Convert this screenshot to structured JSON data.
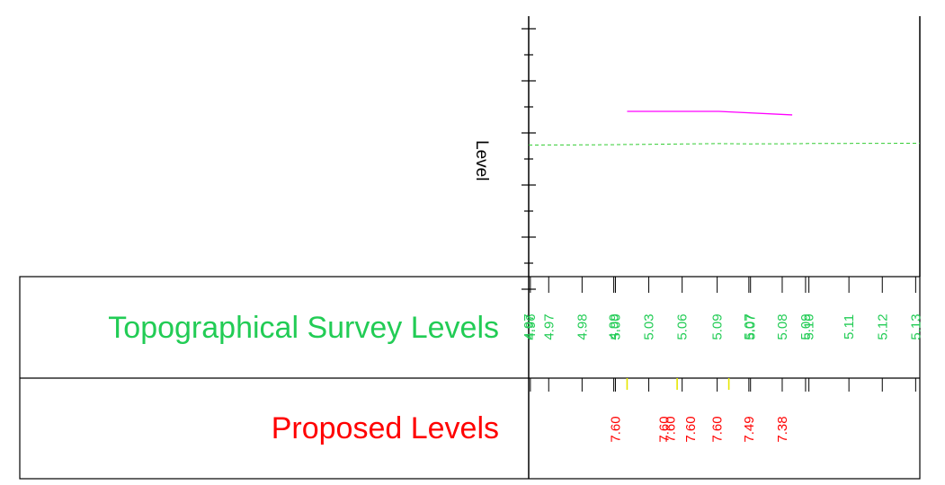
{
  "axis": {
    "y_label": "Level"
  },
  "colors": {
    "survey": "#22cc55",
    "proposed": "#ff0000",
    "proposed_line": "#ff00ff",
    "survey_line": "#33cc33",
    "marker": "#e6e600",
    "axis": "#000000"
  },
  "rows": {
    "survey_label": "Topographical Survey Levels",
    "proposed_label": "Proposed Levels"
  },
  "chart_data": {
    "type": "line",
    "survey_levels": [
      {
        "chainage": 0.0,
        "value": "4.97"
      },
      {
        "chainage": 0.05,
        "value": "4.96"
      },
      {
        "chainage": 0.6,
        "value": "4.97"
      },
      {
        "chainage": 1.6,
        "value": "4.98"
      },
      {
        "chainage": 2.55,
        "value": "4.99"
      },
      {
        "chainage": 2.6,
        "value": "5.00"
      },
      {
        "chainage": 3.6,
        "value": "5.03"
      },
      {
        "chainage": 4.6,
        "value": "5.06"
      },
      {
        "chainage": 5.65,
        "value": "5.09"
      },
      {
        "chainage": 6.6,
        "value": "5.07"
      },
      {
        "chainage": 6.65,
        "value": "5.07"
      },
      {
        "chainage": 7.6,
        "value": "5.08"
      },
      {
        "chainage": 8.3,
        "value": "5.09"
      },
      {
        "chainage": 8.4,
        "value": "5.10"
      },
      {
        "chainage": 9.6,
        "value": "5.11"
      },
      {
        "chainage": 10.6,
        "value": "5.12"
      },
      {
        "chainage": 11.6,
        "value": "5.13"
      }
    ],
    "proposed_levels": [
      {
        "chainage": 2.6,
        "value": "7.60"
      },
      {
        "chainage": 4.05,
        "value": "7.60"
      },
      {
        "chainage": 4.25,
        "value": "7.60"
      },
      {
        "chainage": 4.85,
        "value": "7.60"
      },
      {
        "chainage": 5.65,
        "value": "7.60"
      },
      {
        "chainage": 6.6,
        "value": "7.49"
      },
      {
        "chainage": 7.6,
        "value": "7.38"
      }
    ],
    "proposed_markers": [
      2.95,
      4.45,
      6.0
    ]
  }
}
